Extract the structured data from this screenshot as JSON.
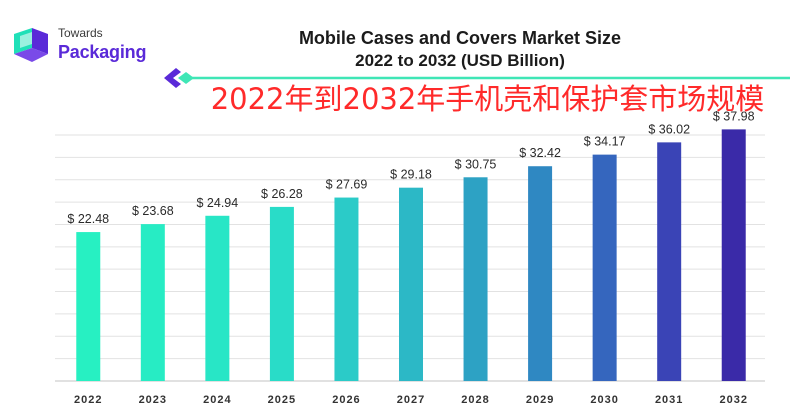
{
  "logo": {
    "line1": "Towards",
    "line2": "Packaging"
  },
  "chart_data": {
    "type": "bar",
    "title": "Mobile Cases and Covers Market Size",
    "subtitle": "2022 to 2032 (USD Billion)",
    "overlay_caption": "2022年到2032年手机壳和保护套市场规模",
    "categories": [
      "2022",
      "2023",
      "2024",
      "2025",
      "2026",
      "2027",
      "2028",
      "2029",
      "2030",
      "2031",
      "2032"
    ],
    "values": [
      22.48,
      23.68,
      24.94,
      26.28,
      27.69,
      29.18,
      30.75,
      32.42,
      34.17,
      36.02,
      37.98
    ],
    "data_labels": [
      "$ 22.48",
      "$ 23.68",
      "$ 24.94",
      "$ 26.28",
      "$ 27.69",
      "$ 29.18",
      "$ 30.75",
      "$ 32.42",
      "$ 34.17",
      "$ 36.02",
      "$ 37.98"
    ],
    "colors": [
      "#27f0c2",
      "#27ecc4",
      "#28e6c6",
      "#29dcc8",
      "#2bcbc8",
      "#2cb8c6",
      "#2da2c4",
      "#2f88c2",
      "#3566be",
      "#3a44b6",
      "#3a2aa8"
    ],
    "accent_line_color": "#3fe6b6",
    "xlabel": "",
    "ylabel": "",
    "ylim": [
      0,
      40
    ],
    "grid": true,
    "legend": "none"
  }
}
